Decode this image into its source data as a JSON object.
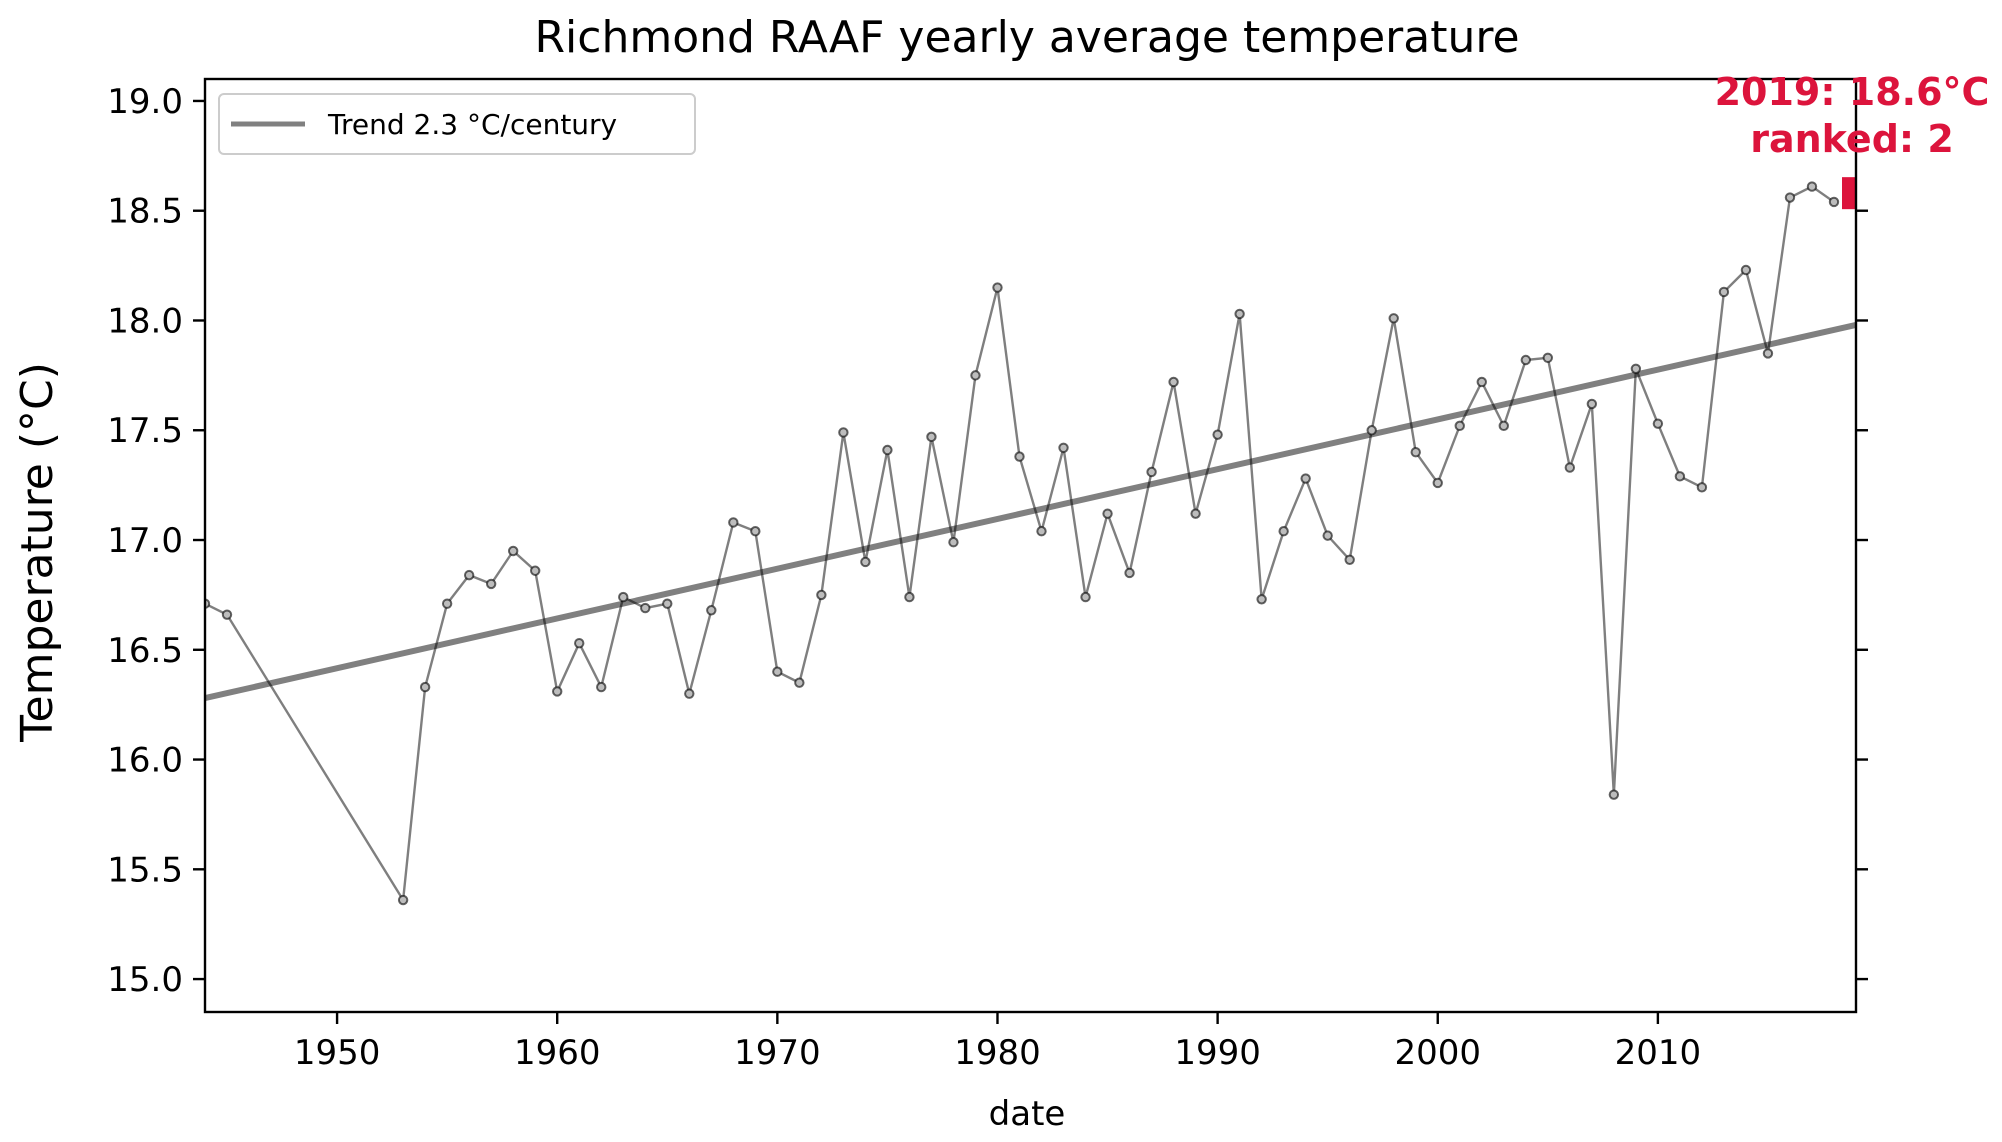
{
  "chart_data": {
    "type": "line",
    "title": "Richmond RAAF yearly average temperature",
    "xlabel": "date",
    "ylabel": "Temperature (°C)",
    "xlim": [
      1944,
      2019
    ],
    "ylim": [
      14.85,
      19.1
    ],
    "x_ticks": [
      1950,
      1960,
      1970,
      1980,
      1990,
      2000,
      2010
    ],
    "y_ticks": [
      15.0,
      15.5,
      16.0,
      16.5,
      17.0,
      17.5,
      18.0,
      18.5,
      19.0
    ],
    "y_tick_labels": [
      "15.0",
      "15.5",
      "16.0",
      "16.5",
      "17.0",
      "17.5",
      "18.0",
      "18.5",
      "19.0"
    ],
    "grid": false,
    "legend_position": "top-left",
    "series": [
      {
        "role": "observations",
        "color": "#808080",
        "points": [
          [
            1944,
            16.71
          ],
          [
            1945,
            16.66
          ],
          [
            1953,
            15.36
          ],
          [
            1954,
            16.33
          ],
          [
            1955,
            16.71
          ],
          [
            1956,
            16.84
          ],
          [
            1957,
            16.8
          ],
          [
            1958,
            16.95
          ],
          [
            1959,
            16.86
          ],
          [
            1960,
            16.31
          ],
          [
            1961,
            16.53
          ],
          [
            1962,
            16.33
          ],
          [
            1963,
            16.74
          ],
          [
            1964,
            16.69
          ],
          [
            1965,
            16.71
          ],
          [
            1966,
            16.3
          ],
          [
            1967,
            16.68
          ],
          [
            1968,
            17.08
          ],
          [
            1969,
            17.04
          ],
          [
            1970,
            16.4
          ],
          [
            1971,
            16.35
          ],
          [
            1972,
            16.75
          ],
          [
            1973,
            17.49
          ],
          [
            1974,
            16.9
          ],
          [
            1975,
            17.41
          ],
          [
            1976,
            16.74
          ],
          [
            1977,
            17.47
          ],
          [
            1978,
            16.99
          ],
          [
            1979,
            17.75
          ],
          [
            1980,
            18.15
          ],
          [
            1981,
            17.38
          ],
          [
            1982,
            17.04
          ],
          [
            1983,
            17.42
          ],
          [
            1984,
            16.74
          ],
          [
            1985,
            17.12
          ],
          [
            1986,
            16.85
          ],
          [
            1987,
            17.31
          ],
          [
            1988,
            17.72
          ],
          [
            1989,
            17.12
          ],
          [
            1990,
            17.48
          ],
          [
            1991,
            18.03
          ],
          [
            1992,
            16.73
          ],
          [
            1993,
            17.04
          ],
          [
            1994,
            17.28
          ],
          [
            1995,
            17.02
          ],
          [
            1996,
            16.91
          ],
          [
            1997,
            17.5
          ],
          [
            1998,
            18.01
          ],
          [
            1999,
            17.4
          ],
          [
            2000,
            17.26
          ],
          [
            2001,
            17.52
          ],
          [
            2002,
            17.72
          ],
          [
            2003,
            17.52
          ],
          [
            2004,
            17.82
          ],
          [
            2005,
            17.83
          ],
          [
            2006,
            17.33
          ],
          [
            2007,
            17.62
          ],
          [
            2008,
            15.84
          ],
          [
            2009,
            17.78
          ],
          [
            2010,
            17.53
          ],
          [
            2011,
            17.29
          ],
          [
            2012,
            17.24
          ],
          [
            2013,
            18.13
          ],
          [
            2014,
            18.23
          ],
          [
            2015,
            17.85
          ],
          [
            2016,
            18.56
          ],
          [
            2017,
            18.61
          ],
          [
            2018,
            18.54
          ]
        ]
      },
      {
        "role": "trend",
        "name": "Trend 2.3 °C/century",
        "color": "#808080",
        "points": [
          [
            1944,
            16.28
          ],
          [
            2019,
            17.98
          ]
        ]
      }
    ],
    "highlight": {
      "x": 2019,
      "y": 18.58,
      "color": "#dc143c",
      "label_line1": "2019: 18.6°C",
      "label_line2": "ranked: 2"
    }
  }
}
